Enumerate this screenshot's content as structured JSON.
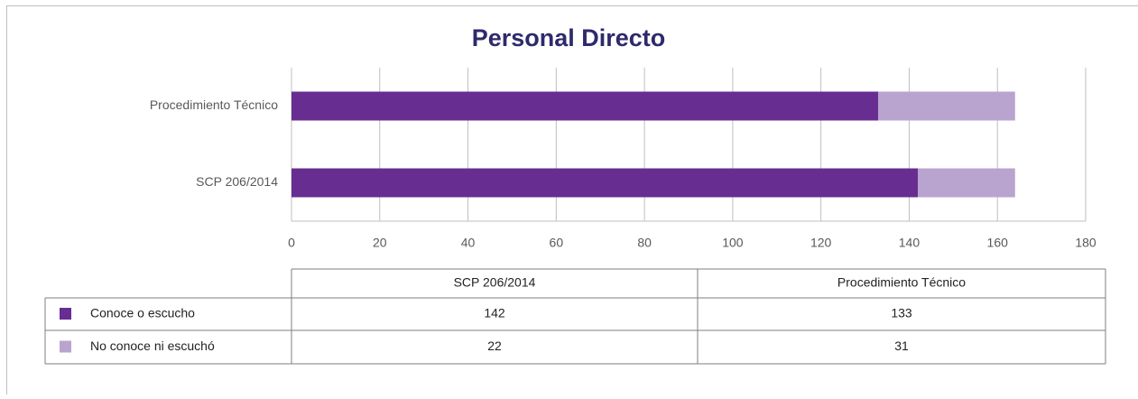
{
  "chart_data": {
    "type": "bar",
    "orientation": "horizontal",
    "title": "Personal Directo",
    "categories": [
      "SCP 206/2014",
      "Procedimiento Técnico"
    ],
    "series": [
      {
        "name": "Conoce o escucho",
        "color": "#672d91",
        "values": [
          142,
          133
        ]
      },
      {
        "name": "No conoce ni escuchó",
        "color": "#b9a3cf",
        "values": [
          22,
          31
        ]
      }
    ],
    "stacked": true,
    "data_table": true,
    "xlim": [
      0,
      180
    ],
    "xticks": [
      0,
      20,
      40,
      60,
      80,
      100,
      120,
      140,
      160,
      180
    ],
    "grid": true
  }
}
